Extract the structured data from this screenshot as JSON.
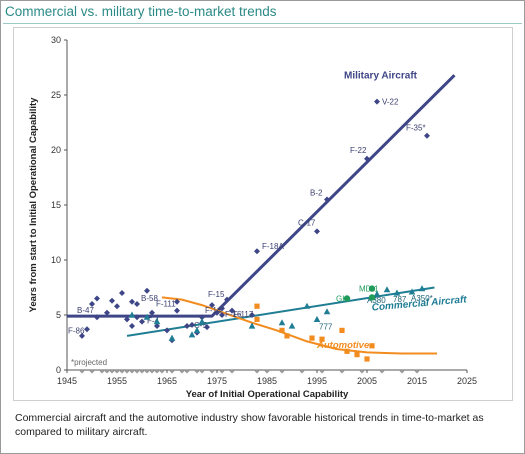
{
  "header": {
    "title": "Commercial vs. military time-to-market trends"
  },
  "caption": "Commercial aircraft and the automotive industry show favorable historical trends in time-to-market as compared to military aircraft.",
  "colors": {
    "military": "#3e4687",
    "commercial": "#1f7d94",
    "automotive": "#f28c1e",
    "commercial_alt": "#1f9b5a",
    "axis": "#555555",
    "projected_markers": "#9a9a9a"
  },
  "chart_data": {
    "type": "scatter",
    "title": "Commercial vs. military time-to-market trends",
    "xlabel": "Year of Initial Operational Capability",
    "ylabel": "Years from start to Initial Operational Capability",
    "xlim": [
      1945,
      2025
    ],
    "ylim": [
      0,
      30
    ],
    "xticks": [
      1945,
      1955,
      1965,
      1975,
      1985,
      1995,
      2005,
      2015,
      2025
    ],
    "yticks": [
      0,
      5,
      10,
      15,
      20,
      25,
      30
    ],
    "grid": false,
    "note": "*projected",
    "trend_labels": [
      {
        "name": "Military Aircraft",
        "x": 2006,
        "y": 26.5
      },
      {
        "name": "Commercial Aircraft",
        "x": 2006,
        "y": 5.4
      },
      {
        "name": "Automotive",
        "x": 1995,
        "y": 2.0
      }
    ],
    "trends": [
      {
        "name": "Military Aircraft",
        "points": [
          [
            1945,
            4.9
          ],
          [
            1974,
            4.9
          ],
          [
            1976,
            5.8
          ],
          [
            2022.5,
            26.8
          ]
        ]
      },
      {
        "name": "Commercial Aircraft",
        "points": [
          [
            1957,
            3.1
          ],
          [
            2018.5,
            7.5
          ]
        ]
      },
      {
        "name": "Automotive",
        "points": [
          [
            1964,
            6.6
          ],
          [
            1968,
            6.4
          ],
          [
            1972,
            5.9
          ],
          [
            1977,
            5.1
          ],
          [
            1982,
            4.3
          ],
          [
            1987,
            3.6
          ],
          [
            1993,
            2.6
          ],
          [
            1999,
            1.9
          ],
          [
            2005,
            1.6
          ],
          [
            2012,
            1.5
          ],
          [
            2019,
            1.5
          ]
        ]
      }
    ],
    "series": [
      {
        "name": "Military Aircraft",
        "marker": "diamond",
        "labeled_points": [
          {
            "label": "B-47",
            "x": 1951,
            "y": 4.8
          },
          {
            "label": "F-86",
            "x": 1949,
            "y": 3.7
          },
          {
            "label": "B-58",
            "x": 1959,
            "y": 6.0
          },
          {
            "label": "F-4",
            "x": 1960,
            "y": 4.4
          },
          {
            "label": "F-111",
            "x": 1967,
            "y": 5.4
          },
          {
            "label": "C-5",
            "x": 1970,
            "y": 4.1
          },
          {
            "label": "F-14",
            "x": 1972,
            "y": 4.8
          },
          {
            "label": "F-15",
            "x": 1974,
            "y": 5.9
          },
          {
            "label": "F-16",
            "x": 1976,
            "y": 5.0
          },
          {
            "label": "F-117",
            "x": 1982,
            "y": 5.0
          },
          {
            "label": "F-18A",
            "x": 1983,
            "y": 10.8
          },
          {
            "label": "C-17",
            "x": 1995,
            "y": 12.6
          },
          {
            "label": "B-2",
            "x": 1997,
            "y": 15.5
          },
          {
            "label": "F-22",
            "x": 2005,
            "y": 19.2
          },
          {
            "label": "V-22",
            "x": 2007,
            "y": 24.4
          },
          {
            "label": "F-35*",
            "x": 2017,
            "y": 21.3
          }
        ],
        "points": [
          [
            1948,
            3.1
          ],
          [
            1950,
            6.0
          ],
          [
            1951,
            6.5
          ],
          [
            1953,
            5.2
          ],
          [
            1954,
            6.3
          ],
          [
            1955,
            5.8
          ],
          [
            1956,
            7.0
          ],
          [
            1957,
            4.6
          ],
          [
            1958,
            4.0
          ],
          [
            1958,
            6.2
          ],
          [
            1959,
            4.8
          ],
          [
            1961,
            7.2
          ],
          [
            1962,
            5.2
          ],
          [
            1963,
            4.0
          ],
          [
            1965,
            3.6
          ],
          [
            1966,
            2.7
          ],
          [
            1967,
            6.2
          ],
          [
            1969,
            4.0
          ],
          [
            1971,
            3.4
          ],
          [
            1973,
            3.9
          ],
          [
            1975,
            5.2
          ],
          [
            1976,
            5.6
          ],
          [
            1977,
            6.4
          ],
          [
            1978,
            5.4
          ]
        ]
      },
      {
        "name": "Commercial Aircraft",
        "marker": "triangle",
        "labeled_points": [
          {
            "label": "777",
            "x": 1995,
            "y": 4.6
          },
          {
            "label": "A380",
            "x": 2007,
            "y": 6.9
          },
          {
            "label": "787",
            "x": 2011,
            "y": 7.0
          },
          {
            "label": "A350*",
            "x": 2014,
            "y": 7.1
          }
        ],
        "points": [
          [
            1958,
            5.0
          ],
          [
            1961,
            4.8
          ],
          [
            1963,
            4.4
          ],
          [
            1966,
            2.9
          ],
          [
            1970,
            3.2
          ],
          [
            1971,
            3.6
          ],
          [
            1972,
            4.4
          ],
          [
            1982,
            4.0
          ],
          [
            1988,
            4.3
          ],
          [
            1990,
            4.0
          ],
          [
            1993,
            5.8
          ],
          [
            1997,
            5.3
          ],
          [
            2006,
            6.6
          ],
          [
            2009,
            7.3
          ],
          [
            2016,
            7.4
          ]
        ]
      },
      {
        "name": "Commercial Aircraft (circle)",
        "marker": "circle",
        "labeled_points": [
          {
            "label": "GH",
            "x": 2001,
            "y": 6.5
          },
          {
            "label": "MD-1",
            "x": 2006,
            "y": 7.4
          }
        ],
        "points": [
          [
            2001,
            6.5
          ],
          [
            2006,
            7.4
          ],
          [
            2006,
            6.6
          ]
        ]
      },
      {
        "name": "Automotive",
        "marker": "square",
        "points": [
          [
            1983,
            5.8
          ],
          [
            1983,
            4.6
          ],
          [
            1988,
            3.6
          ],
          [
            1989,
            3.1
          ],
          [
            1994,
            2.9
          ],
          [
            1996,
            2.8
          ],
          [
            2000,
            3.6
          ],
          [
            2001,
            1.7
          ],
          [
            2003,
            1.4
          ],
          [
            2005,
            1.0
          ],
          [
            2006,
            2.2
          ]
        ]
      },
      {
        "name": "Projected",
        "marker": "diamond-gray",
        "points": [
          [
            1948,
            -0.1
          ],
          [
            1950,
            -0.1
          ],
          [
            1952,
            -0.1
          ],
          [
            1953,
            -0.1
          ],
          [
            1954,
            -0.1
          ],
          [
            1955,
            -0.1
          ],
          [
            1956,
            -0.1
          ],
          [
            1957,
            -0.1
          ],
          [
            1958,
            -0.1
          ],
          [
            1959,
            -0.1
          ],
          [
            1960,
            -0.1
          ],
          [
            1961,
            -0.1
          ],
          [
            1962,
            -0.1
          ],
          [
            1963,
            -0.1
          ],
          [
            1964,
            -0.1
          ],
          [
            1966,
            -0.1
          ],
          [
            1968,
            -0.1
          ],
          [
            1969,
            -0.1
          ],
          [
            1971,
            -0.1
          ],
          [
            1972,
            -0.1
          ],
          [
            1974,
            -0.1
          ],
          [
            1976,
            -0.1
          ],
          [
            1978,
            -0.1
          ],
          [
            1983,
            -0.1
          ],
          [
            1985,
            -0.1
          ],
          [
            1988,
            -0.1
          ],
          [
            1992,
            -0.1
          ],
          [
            1996,
            -0.1
          ],
          [
            2000,
            -0.1
          ],
          [
            2004,
            -0.1
          ],
          [
            2008,
            -0.1
          ],
          [
            2012,
            -0.1
          ],
          [
            2015,
            -0.1
          ]
        ]
      }
    ]
  }
}
